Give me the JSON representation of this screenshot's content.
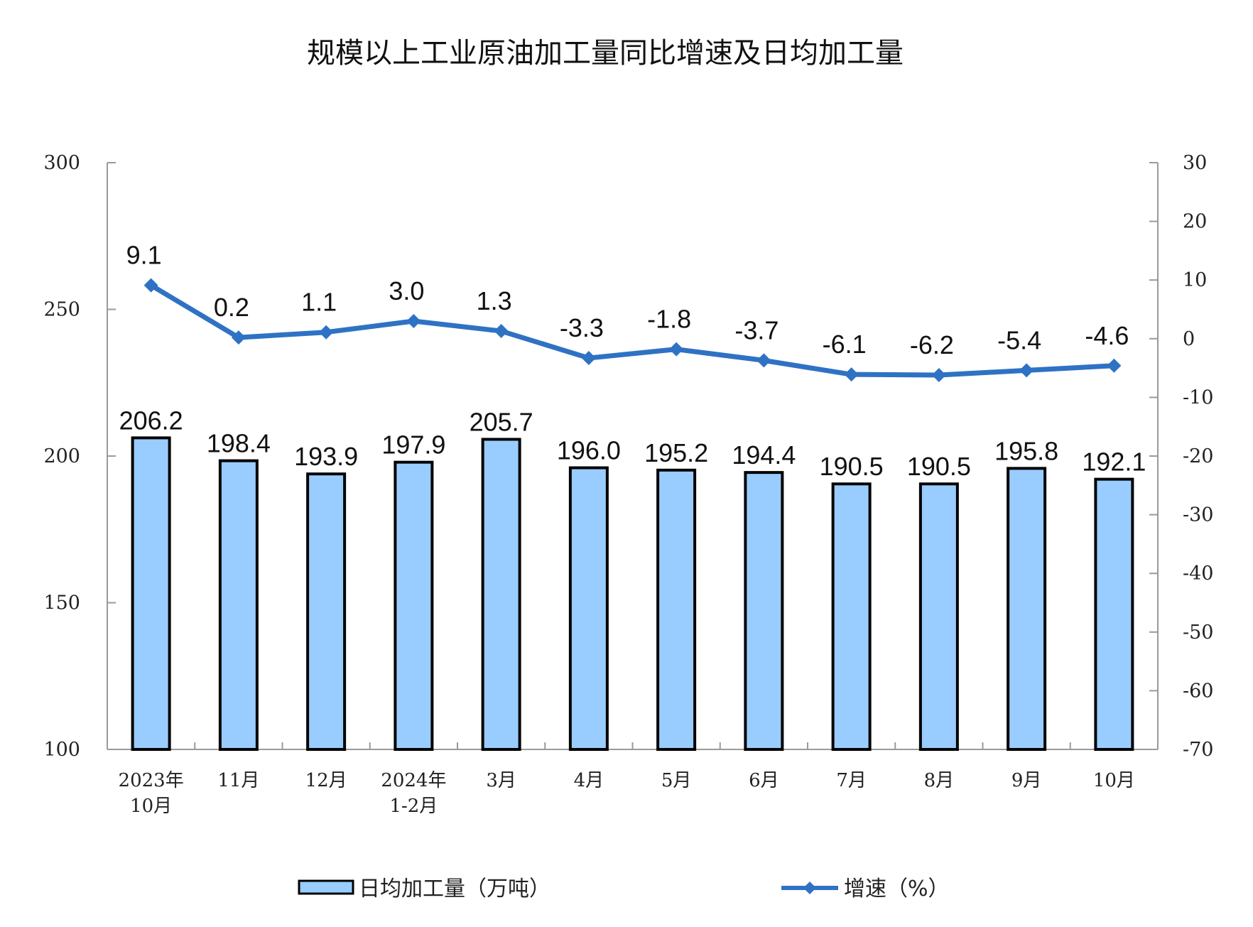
{
  "chart_data": {
    "type": "bar+line",
    "title": "规模以上工业原油加工量同比增速及日均加工量",
    "categories": [
      "2023年\n10月",
      "11月",
      "12月",
      "2024年\n1-2月",
      "3月",
      "4月",
      "5月",
      "6月",
      "7月",
      "8月",
      "9月",
      "10月"
    ],
    "series": [
      {
        "name": "日均加工量（万吨）",
        "type": "bar",
        "axis": "left",
        "color": "#99CCFF",
        "border": "#000000",
        "values": [
          206.2,
          198.4,
          193.9,
          197.9,
          205.7,
          196.0,
          195.2,
          194.4,
          190.5,
          190.5,
          195.8,
          192.1
        ],
        "labels": [
          "206.2",
          "198.4",
          "193.9",
          "197.9",
          "205.7",
          "196.0",
          "195.2",
          "194.4",
          "190.5",
          "190.5",
          "195.8",
          "192.1"
        ]
      },
      {
        "name": "增速（%）",
        "type": "line",
        "axis": "right",
        "color": "#2F72C4",
        "marker": "diamond",
        "values": [
          9.1,
          0.2,
          1.1,
          3.0,
          1.3,
          -3.3,
          -1.8,
          -3.7,
          -6.1,
          -6.2,
          -5.4,
          -4.6
        ],
        "labels": [
          "9.1",
          "0.2",
          "1.1",
          "3.0",
          "1.3",
          "-3.3",
          "-1.8",
          "-3.7",
          "-6.1",
          "-6.2",
          "-5.4",
          "-4.6"
        ]
      }
    ],
    "left_axis": {
      "min": 100,
      "max": 300,
      "ticks": [
        100,
        150,
        200,
        250,
        300
      ]
    },
    "right_axis": {
      "min": -70,
      "max": 30,
      "ticks": [
        30,
        20,
        10,
        0,
        -10,
        -20,
        -30,
        -40,
        -50,
        -60,
        -70
      ]
    },
    "xlabel": "",
    "ylabel": "",
    "grid": false,
    "legend_position": "bottom"
  }
}
